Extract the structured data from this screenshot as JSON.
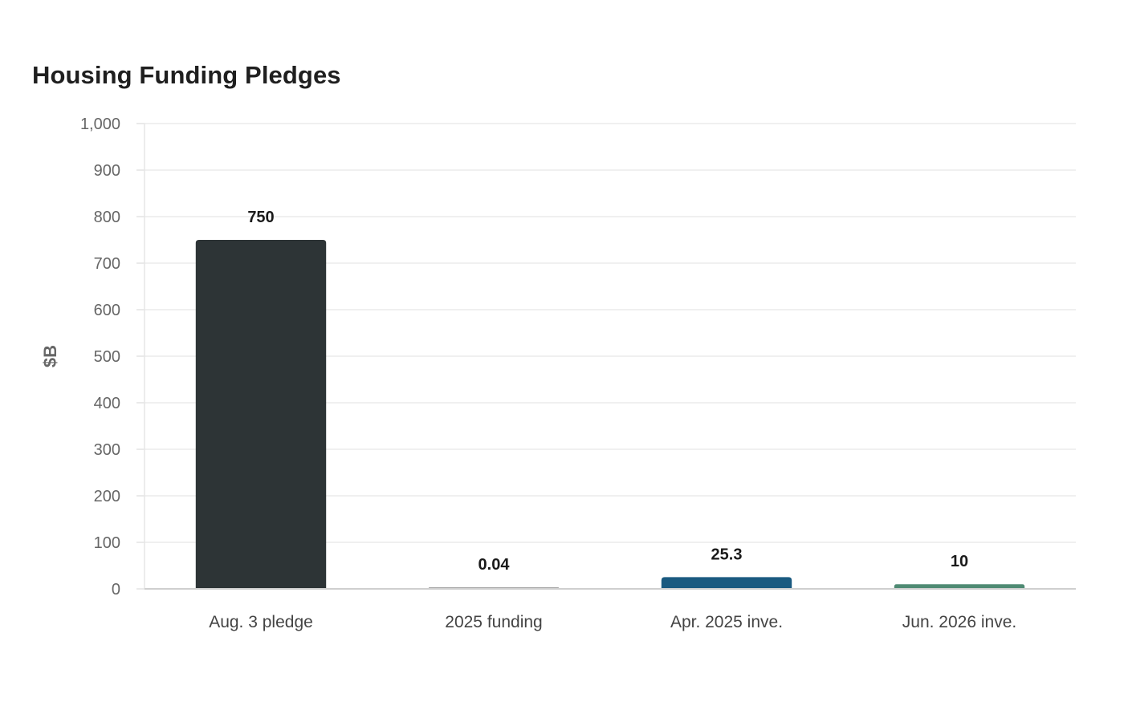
{
  "chart_data": {
    "type": "bar",
    "title": "Housing Funding Pledges",
    "xlabel": "",
    "ylabel": "$B",
    "categories": [
      "Aug. 3 pledge",
      "2025 funding",
      "Apr. 2025 inve.",
      "Jun. 2026 inve."
    ],
    "values": [
      750,
      0.04,
      25.3,
      10
    ],
    "value_labels": [
      "750",
      "0.04",
      "25.3",
      "10"
    ],
    "colors": [
      "#2d3436",
      "#a6a6a6",
      "#1a5a80",
      "#4f8a73"
    ],
    "ylim": [
      0,
      1000
    ],
    "yticks": [
      0,
      100,
      200,
      300,
      400,
      500,
      600,
      700,
      800,
      900,
      1000
    ],
    "ytick_labels": [
      "0",
      "100",
      "200",
      "300",
      "400",
      "500",
      "600",
      "700",
      "800",
      "900",
      "1,000"
    ],
    "grid": true,
    "legend": "none"
  }
}
